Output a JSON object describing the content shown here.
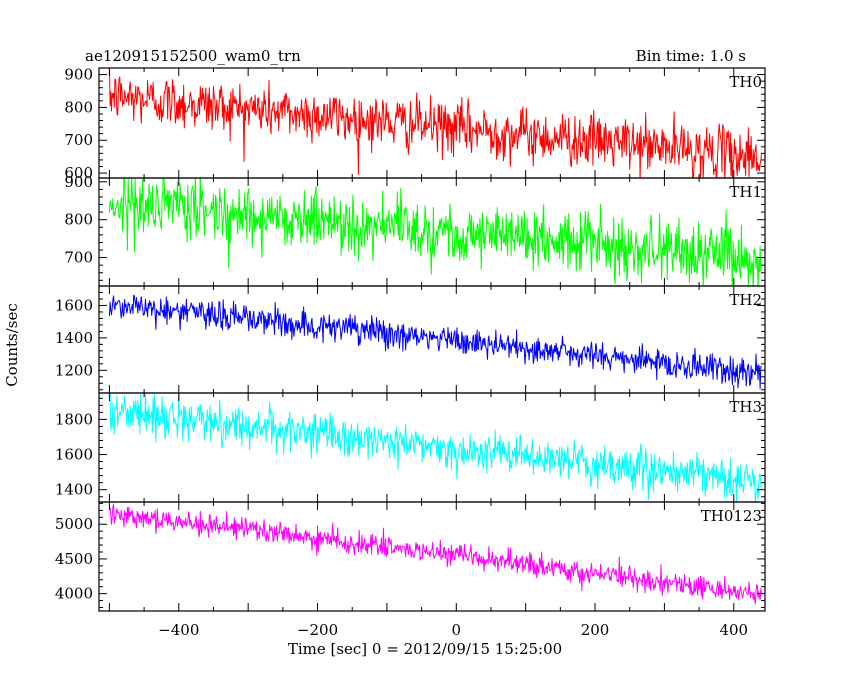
{
  "header": {
    "title": "ae120915152500_wam0_trn",
    "bin_time": "Bin time: 1.0 s"
  },
  "chart_data": {
    "type": "line",
    "xlabel": "Time [sec] 0 = 2012/09/15 15:25:00",
    "ylabel": "Counts/sec",
    "xlim": [
      -515,
      445
    ],
    "x_range": [
      -500,
      440
    ],
    "x_step": 1,
    "xticks": [
      -400,
      -200,
      0,
      200,
      400
    ],
    "xtick_labels": [
      "−400",
      "−200",
      "0",
      "200",
      "400"
    ],
    "series": [
      {
        "name": "TH0",
        "color": "#ff0000",
        "ylim": [
          585,
          920
        ],
        "yticks": [
          600,
          700,
          800,
          900
        ],
        "trend": {
          "start": 835,
          "end": 650
        },
        "noise": 40
      },
      {
        "name": "TH1",
        "color": "#00ff00",
        "ylim": [
          625,
          910
        ],
        "yticks": [
          700,
          800,
          900
        ],
        "trend": {
          "start": 845,
          "end": 700
        },
        "noise": 40
      },
      {
        "name": "TH2",
        "color": "#0000ff",
        "ylim": [
          1060,
          1720
        ],
        "yticks": [
          1200,
          1400,
          1600
        ],
        "trend": {
          "start": 1610,
          "end": 1180
        },
        "noise": 45
      },
      {
        "name": "TH3",
        "color": "#00ffff",
        "ylim": [
          1330,
          1950
        ],
        "yticks": [
          1400,
          1600,
          1800
        ],
        "trend": {
          "start": 1850,
          "end": 1440
        },
        "noise": 55
      },
      {
        "name": "TH0123",
        "color": "#ff00ff",
        "ylim": [
          3750,
          5320
        ],
        "yticks": [
          4000,
          4500,
          5000
        ],
        "trend": {
          "start": 5170,
          "end": 3990
        },
        "noise": 80
      }
    ]
  }
}
